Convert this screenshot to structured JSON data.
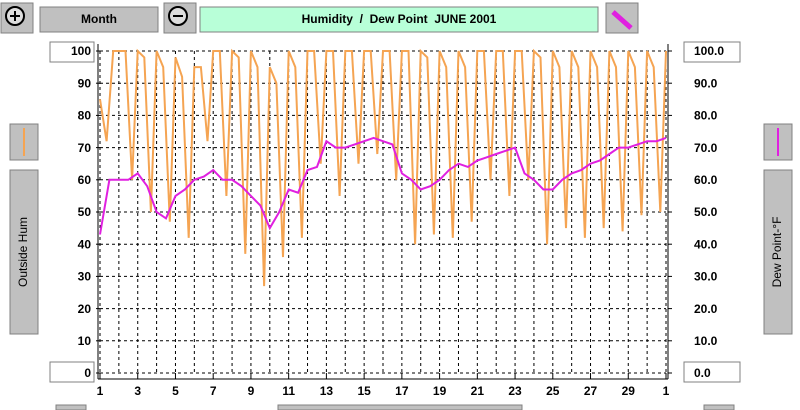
{
  "toolbar": {
    "period": "Month"
  },
  "chart_data": {
    "type": "line",
    "title": "Humidity  /  Dew Point  JUNE 2001",
    "xlim": [
      1,
      31
    ],
    "xticks": [
      1,
      3,
      5,
      7,
      9,
      11,
      13,
      15,
      17,
      19,
      21,
      23,
      25,
      27,
      29,
      {
        "value": 31,
        "label": "1"
      }
    ],
    "ylim": [
      0,
      100
    ],
    "yticks": [
      0,
      10,
      20,
      30,
      40,
      50,
      60,
      70,
      80,
      90,
      100
    ],
    "y2lim": [
      0,
      100
    ],
    "y2ticks": [
      {
        "value": 0,
        "label": "0.0"
      },
      {
        "value": 10,
        "label": "10.0"
      },
      {
        "value": 20,
        "label": "20.0"
      },
      {
        "value": 30,
        "label": "30.0"
      },
      {
        "value": 40,
        "label": "40.0"
      },
      {
        "value": 50,
        "label": "50.0"
      },
      {
        "value": 60,
        "label": "60.0"
      },
      {
        "value": 70,
        "label": "70.0"
      },
      {
        "value": 80,
        "label": "80.0"
      },
      {
        "value": 90,
        "label": "90.0"
      },
      {
        "value": 100,
        "label": "100.0"
      }
    ],
    "grid": true,
    "series": [
      {
        "name": "Outside Hum",
        "color": "#f5a452",
        "x": [
          1,
          1.35,
          1.7,
          2,
          2.35,
          2.7,
          3,
          3.35,
          3.7,
          4,
          4.35,
          4.7,
          5,
          5.35,
          5.7,
          6,
          6.35,
          6.7,
          7,
          7.35,
          7.7,
          8,
          8.35,
          8.7,
          9,
          9.35,
          9.7,
          10,
          10.35,
          10.7,
          11,
          11.35,
          11.7,
          12,
          12.35,
          12.7,
          13,
          13.35,
          13.7,
          14,
          14.35,
          14.7,
          15,
          15.35,
          15.7,
          16,
          16.35,
          16.7,
          17,
          17.35,
          17.7,
          18,
          18.35,
          18.7,
          19,
          19.35,
          19.7,
          20,
          20.35,
          20.7,
          21,
          21.35,
          21.7,
          22,
          22.35,
          22.7,
          23,
          23.35,
          23.7,
          24,
          24.35,
          24.7,
          25,
          25.35,
          25.7,
          26,
          26.35,
          26.7,
          27,
          27.35,
          27.7,
          28,
          28.35,
          28.7,
          29,
          29.35,
          29.7,
          30,
          30.35,
          30.7,
          31
        ],
        "values": [
          85,
          72,
          100,
          100,
          100,
          60,
          100,
          98,
          50,
          100,
          95,
          47,
          98,
          92,
          42,
          95,
          95,
          72,
          100,
          100,
          55,
          100,
          98,
          37,
          100,
          95,
          27,
          95,
          90,
          36,
          100,
          95,
          42,
          100,
          100,
          65,
          100,
          100,
          55,
          100,
          100,
          65,
          100,
          100,
          68,
          100,
          100,
          60,
          100,
          100,
          40,
          100,
          98,
          43,
          100,
          95,
          42,
          100,
          95,
          47,
          100,
          100,
          60,
          100,
          100,
          55,
          100,
          100,
          60,
          100,
          98,
          40,
          100,
          95,
          45,
          100,
          95,
          42,
          100,
          95,
          45,
          100,
          95,
          44,
          100,
          95,
          49,
          100,
          95,
          50,
          100
        ]
      },
      {
        "name": "Dew Point-°F",
        "color": "#e020e0",
        "axis": "y2",
        "x": [
          1,
          1.5,
          2,
          2.5,
          3,
          3.5,
          4,
          4.5,
          5,
          5.5,
          6,
          6.5,
          7,
          7.5,
          8,
          8.5,
          9,
          9.5,
          10,
          10.5,
          11,
          11.5,
          12,
          12.5,
          13,
          13.5,
          14,
          14.5,
          15,
          15.5,
          16,
          16.5,
          17,
          17.5,
          18,
          18.5,
          19,
          19.5,
          20,
          20.5,
          21,
          21.5,
          22,
          22.5,
          23,
          23.5,
          24,
          24.5,
          25,
          25.5,
          26,
          26.5,
          27,
          27.5,
          28,
          28.5,
          29,
          29.5,
          30,
          30.5,
          31
        ],
        "values": [
          43,
          60,
          60,
          60,
          62,
          58,
          50,
          48,
          55,
          57,
          60,
          61,
          63,
          60,
          60,
          58,
          55,
          52,
          45,
          50,
          57,
          56,
          63,
          64,
          72,
          70,
          70,
          71,
          72,
          73,
          72,
          71,
          62,
          60,
          57,
          58,
          60,
          63,
          65,
          64,
          66,
          67,
          68,
          69,
          70,
          62,
          60,
          57,
          57,
          60,
          62,
          63,
          65,
          66,
          68,
          70,
          70,
          71,
          72,
          72,
          73
        ]
      }
    ]
  }
}
